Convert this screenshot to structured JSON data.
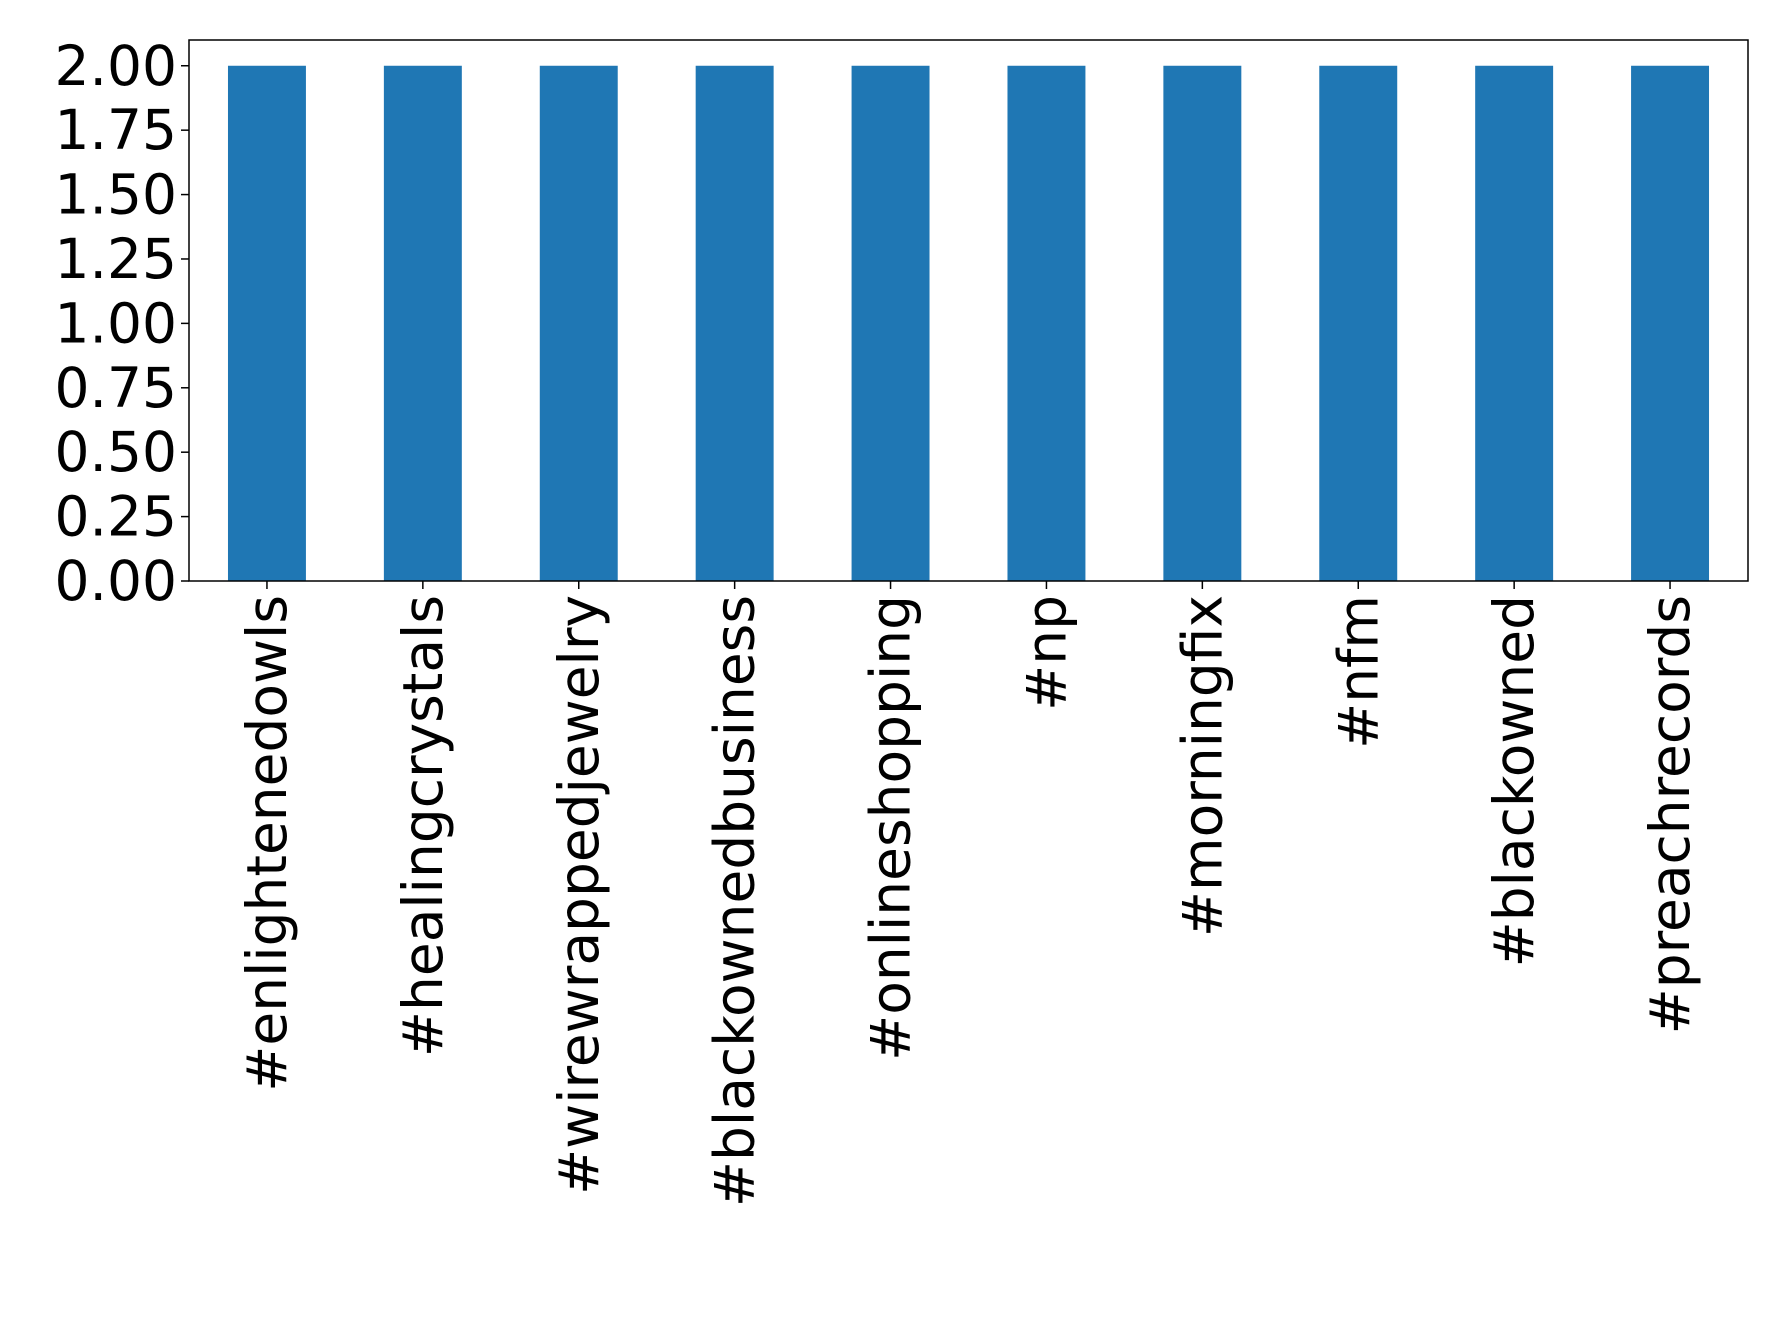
{
  "chart_data": {
    "type": "bar",
    "categories": [
      "#enlightenedowls",
      "#healingcrystals",
      "#wirewrappedjewelry",
      "#blackownedbusiness",
      "#onlineshopping",
      "#np",
      "#morningfix",
      "#nfm",
      "#blackowned",
      "#preachrecords"
    ],
    "values": [
      2,
      2,
      2,
      2,
      2,
      2,
      2,
      2,
      2,
      2
    ],
    "color": "#1f77b4",
    "ylim": [
      0,
      2.1
    ],
    "yticks": [
      {
        "value": 0,
        "label": "0.00"
      },
      {
        "value": 0.25,
        "label": "0.25"
      },
      {
        "value": 0.5,
        "label": "0.50"
      },
      {
        "value": 0.75,
        "label": "0.75"
      },
      {
        "value": 1,
        "label": "1.00"
      },
      {
        "value": 1.25,
        "label": "1.25"
      },
      {
        "value": 1.5,
        "label": "1.50"
      },
      {
        "value": 1.75,
        "label": "1.75"
      },
      {
        "value": 2,
        "label": "2.00"
      }
    ],
    "grid": false
  }
}
